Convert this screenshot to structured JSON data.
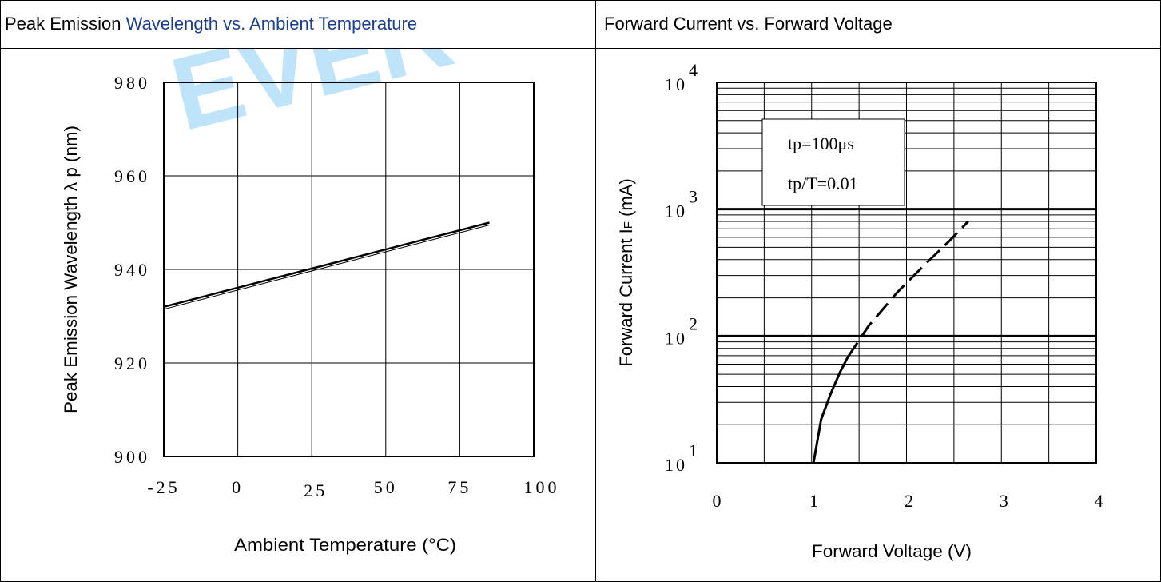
{
  "watermark": "EVER",
  "colors": {
    "watermark": "#bfe3f8",
    "title_blue": "#1b3f8f"
  },
  "panels": {
    "left": {
      "title_black": "Peak Emission",
      "title_blue": " Wavelength vs. Ambient Temperature"
    },
    "right": {
      "title": "Forward Current vs. Forward Voltage"
    }
  },
  "chart_data": [
    {
      "type": "line",
      "title": "Peak Emission Wavelength vs. Ambient Temperature",
      "xlabel": "Ambient Temperature (°C)",
      "ylabel": "Peak Emission Wavelength  λ p (nm)",
      "xlim": [
        -25,
        100
      ],
      "ylim": [
        900,
        980
      ],
      "x_ticks": [
        "-25",
        "0",
        "25",
        "50",
        "75",
        "100"
      ],
      "y_ticks": [
        "980",
        "960",
        "940",
        "920",
        "900"
      ],
      "grid": true,
      "series": [
        {
          "x": [
            -25,
            85
          ],
          "y": [
            932,
            950
          ]
        }
      ]
    },
    {
      "type": "line",
      "title": "Forward Current vs. Forward Voltage",
      "xlabel": "Forward Voltage (V)",
      "ylabel_main": "Forward Current I",
      "ylabel_sub": "F",
      "ylabel_unit": " (mA)",
      "xlim": [
        0,
        4
      ],
      "ylim": [
        10,
        10000
      ],
      "yscale": "log",
      "x_ticks": [
        "0",
        "1",
        "2",
        "3",
        "4"
      ],
      "y_ticks": [
        {
          "base": "10",
          "exp": "4"
        },
        {
          "base": "10",
          "exp": "3"
        },
        {
          "base": "10",
          "exp": "2"
        },
        {
          "base": "10",
          "exp": "1"
        }
      ],
      "grid": true,
      "annotations": [
        "tp=100μs",
        "tp/T=0.01"
      ],
      "series": [
        {
          "style": "solid",
          "x": [
            1.02,
            1.1,
            1.2,
            1.3,
            1.38
          ],
          "y": [
            10,
            22,
            35,
            52,
            68
          ]
        },
        {
          "style": "dashed",
          "x": [
            1.38,
            1.6,
            1.9,
            2.2,
            2.45,
            2.65
          ],
          "y": [
            68,
            120,
            220,
            370,
            560,
            800
          ]
        }
      ]
    }
  ]
}
